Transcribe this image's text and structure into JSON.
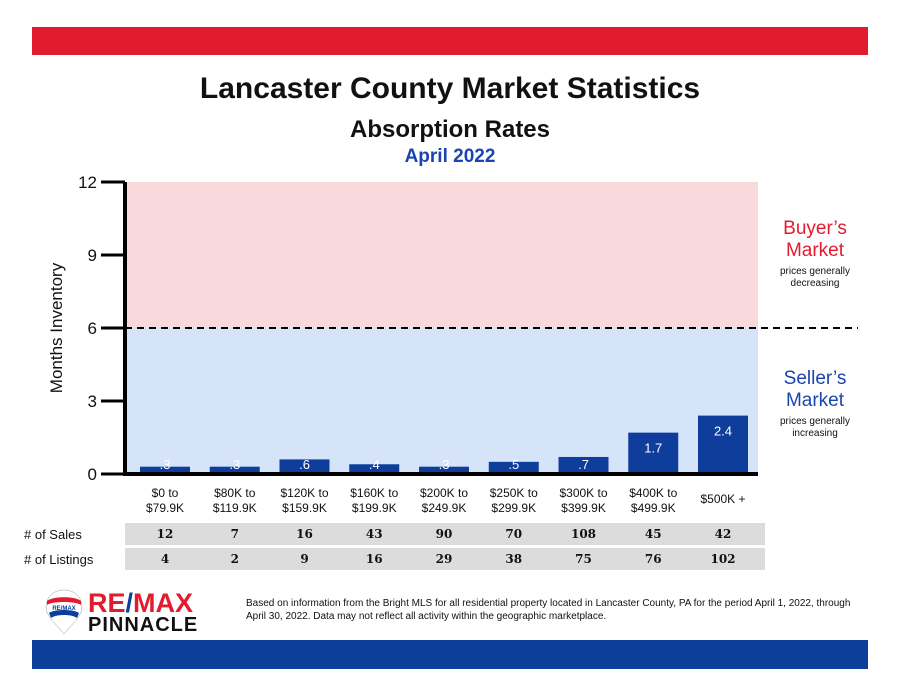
{
  "header": {
    "title": "Lancaster County Market Statistics",
    "subtitle": "Absorption Rates",
    "period": "April 2022"
  },
  "chart_data": {
    "type": "bar",
    "ylabel": "Months Inventory",
    "ylim": [
      0,
      12
    ],
    "yticks": [
      "0",
      "3",
      "6",
      "9",
      "12"
    ],
    "threshold": 6,
    "categories": [
      [
        "$0 to",
        "$79.9K"
      ],
      [
        "$80K to",
        "$119.9K"
      ],
      [
        "$120K to",
        "$159.9K"
      ],
      [
        "$160K to",
        "$199.9K"
      ],
      [
        "$200K to",
        "$249.9K"
      ],
      [
        "$250K to",
        "$299.9K"
      ],
      [
        "$300K to",
        "$399.9K"
      ],
      [
        "$400K to",
        "$499.9K"
      ],
      [
        "$500K +"
      ]
    ],
    "values": [
      0.3,
      0.3,
      0.6,
      0.4,
      0.3,
      0.5,
      0.7,
      1.7,
      2.4
    ],
    "labels": [
      ".3",
      ".3",
      ".6",
      ".4",
      ".3",
      ".5",
      ".7",
      "1.7",
      "2.4"
    ],
    "colors": {
      "bar": "#0e3d9c",
      "buyer_zone": "#f9d9dc",
      "seller_zone": "#d6e4fa"
    }
  },
  "zones": {
    "buyer_title": "Buyer’s Market",
    "buyer_note": "prices generally decreasing",
    "seller_title": "Seller’s Market",
    "seller_note": "prices generally increasing"
  },
  "table": {
    "sales_label": "# of Sales",
    "sales": [
      "12",
      "7",
      "16",
      "43",
      "90",
      "70",
      "108",
      "45",
      "42"
    ],
    "listings_label": "# of Listings",
    "listings": [
      "4",
      "2",
      "9",
      "16",
      "29",
      "38",
      "75",
      "76",
      "102"
    ]
  },
  "logo": {
    "line1": "RE",
    "slash": "/",
    "line1b": "MAX",
    "line2": "PINNACLE",
    "badge": "RE/MAX"
  },
  "footnote": "Based on information from the Bright MLS for all residential property located in Lancaster County, PA for the period April 1, 2022, through April 30, 2022.  Data may not reflect all activity within the geographic marketplace."
}
